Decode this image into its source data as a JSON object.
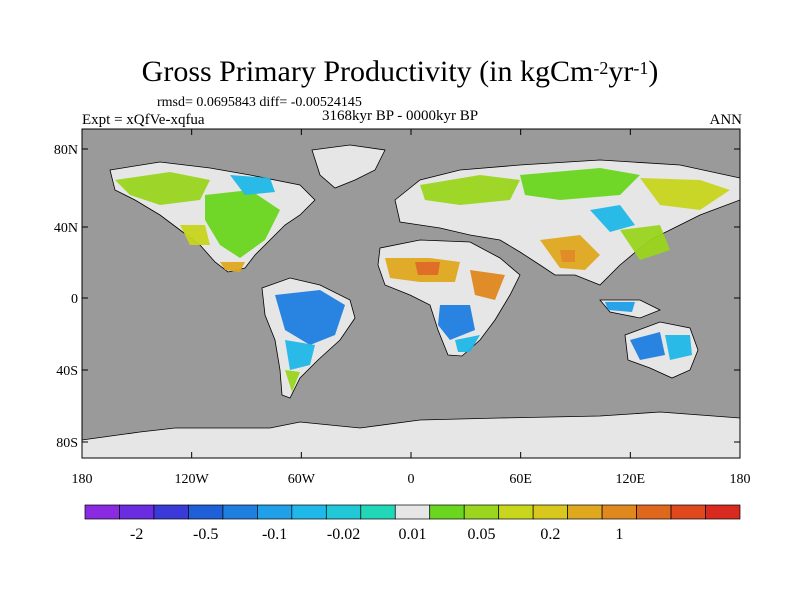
{
  "title": {
    "main": "Gross Primary Productivity (in kgCm",
    "sup1": "-2",
    "mid": "yr",
    "sup2": "-1",
    "end": ")"
  },
  "stats": "rmsd= 0.0695843 diff= -0.00524145",
  "experiment": "Expt = xQfVe-xqfua",
  "period": "3168kyr BP - 0000kyr BP",
  "season": "ANN",
  "map": {
    "ocean_color": "#9a9a9a",
    "land_zero_color": "#e6e6e6",
    "y_axis_labels": [
      "80N",
      "40N",
      "0",
      "40S",
      "80S"
    ],
    "x_axis_labels": [
      "180",
      "120W",
      "60W",
      "0",
      "60E",
      "120E",
      "180"
    ]
  },
  "colorbar": {
    "colors": [
      "#8a2be2",
      "#6a2ce0",
      "#3a3ad8",
      "#1f5fd8",
      "#1e7fe0",
      "#1fa0e8",
      "#20b8e8",
      "#20c8d8",
      "#20d8b8",
      "#e6e6e6",
      "#6ad61e",
      "#9ad61e",
      "#c8d61e",
      "#d8c81e",
      "#e0a81e",
      "#e0881e",
      "#e0681e",
      "#e0481e",
      "#d82a1e"
    ],
    "labels": [
      "-2",
      "-0.5",
      "-0.1",
      "-0.02",
      "0.01",
      "0.05",
      "0.2",
      "1"
    ]
  }
}
